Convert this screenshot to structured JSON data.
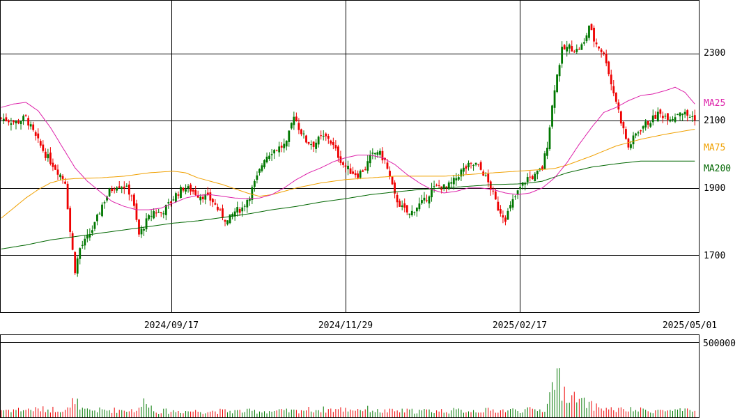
{
  "chart_data": {
    "type": "candlestick",
    "price_axis": {
      "ylim": [
        1530,
        2460
      ],
      "ticks": [
        1700,
        1900,
        2100,
        2300
      ],
      "tick_labels": [
        "1700",
        "1900",
        "2100",
        "2300"
      ]
    },
    "date_axis": {
      "tick_labels": [
        "2024/09/17",
        "2024/11/29",
        "2025/02/17",
        "2025/05/01"
      ]
    },
    "volume_axis": {
      "ylim": [
        0,
        500000
      ],
      "ticks": [
        500000
      ],
      "tick_labels": [
        "500000"
      ]
    },
    "legend": [
      "MA25",
      "MA75",
      "MA200"
    ],
    "colors": {
      "up": "#007700",
      "down": "#ee0000",
      "ma25": "#dd22aa",
      "ma75": "#f0a000",
      "ma200": "#006600",
      "grid": "#000000"
    },
    "price_anchors": [
      [
        0,
        2108
      ],
      [
        6,
        2095
      ],
      [
        10,
        2110
      ],
      [
        14,
        2050
      ],
      [
        18,
        2000
      ],
      [
        22,
        1960
      ],
      [
        26,
        1920
      ],
      [
        28,
        1770
      ],
      [
        30,
        1655
      ],
      [
        32,
        1720
      ],
      [
        35,
        1750
      ],
      [
        38,
        1790
      ],
      [
        41,
        1850
      ],
      [
        44,
        1890
      ],
      [
        47,
        1910
      ],
      [
        50,
        1905
      ],
      [
        53,
        1880
      ],
      [
        56,
        1760
      ],
      [
        59,
        1800
      ],
      [
        62,
        1830
      ],
      [
        65,
        1825
      ],
      [
        68,
        1850
      ],
      [
        71,
        1880
      ],
      [
        74,
        1900
      ],
      [
        77,
        1895
      ],
      [
        80,
        1880
      ],
      [
        83,
        1875
      ],
      [
        86,
        1860
      ],
      [
        89,
        1825
      ],
      [
        92,
        1800
      ],
      [
        95,
        1830
      ],
      [
        98,
        1840
      ],
      [
        101,
        1880
      ],
      [
        104,
        1930
      ],
      [
        107,
        1990
      ],
      [
        110,
        2010
      ],
      [
        113,
        2020
      ],
      [
        116,
        2030
      ],
      [
        119,
        2120
      ],
      [
        121,
        2080
      ],
      [
        124,
        2040
      ],
      [
        127,
        2030
      ],
      [
        130,
        2050
      ],
      [
        133,
        2050
      ],
      [
        136,
        2010
      ],
      [
        139,
        1970
      ],
      [
        142,
        1950
      ],
      [
        145,
        1940
      ],
      [
        148,
        1960
      ],
      [
        150,
        1990
      ],
      [
        153,
        2010
      ],
      [
        156,
        1980
      ],
      [
        158,
        1930
      ],
      [
        160,
        1875
      ],
      [
        163,
        1840
      ],
      [
        166,
        1820
      ],
      [
        169,
        1845
      ],
      [
        172,
        1860
      ],
      [
        175,
        1895
      ],
      [
        178,
        1905
      ],
      [
        181,
        1900
      ],
      [
        184,
        1920
      ],
      [
        187,
        1950
      ],
      [
        190,
        1965
      ],
      [
        193,
        1970
      ],
      [
        196,
        1945
      ],
      [
        199,
        1900
      ],
      [
        202,
        1840
      ],
      [
        205,
        1810
      ],
      [
        208,
        1860
      ],
      [
        211,
        1900
      ],
      [
        214,
        1930
      ],
      [
        217,
        1935
      ],
      [
        220,
        1960
      ],
      [
        222,
        2030
      ],
      [
        225,
        2200
      ],
      [
        228,
        2310
      ],
      [
        231,
        2320
      ],
      [
        234,
        2310
      ],
      [
        237,
        2330
      ],
      [
        239,
        2385
      ],
      [
        241,
        2340
      ],
      [
        244,
        2310
      ],
      [
        246,
        2280
      ],
      [
        248,
        2210
      ],
      [
        250,
        2160
      ],
      [
        252,
        2100
      ],
      [
        255,
        2020
      ],
      [
        258,
        2060
      ],
      [
        261,
        2085
      ],
      [
        264,
        2100
      ],
      [
        267,
        2120
      ],
      [
        270,
        2115
      ],
      [
        273,
        2110
      ],
      [
        276,
        2130
      ],
      [
        279,
        2115
      ],
      [
        282,
        2110
      ]
    ],
    "volume_anchors": [
      [
        0,
        60000
      ],
      [
        28,
        65000
      ],
      [
        30,
        160000
      ],
      [
        32,
        55000
      ],
      [
        56,
        60000
      ],
      [
        59,
        150000
      ],
      [
        62,
        50000
      ],
      [
        120,
        50000
      ],
      [
        122,
        60000
      ],
      [
        150,
        65000
      ],
      [
        153,
        50000
      ],
      [
        200,
        55000
      ],
      [
        221,
        60000
      ],
      [
        225,
        280000
      ],
      [
        226,
        500000
      ],
      [
        227,
        270000
      ],
      [
        228,
        200000
      ],
      [
        231,
        170000
      ],
      [
        234,
        130000
      ],
      [
        237,
        110000
      ],
      [
        240,
        90000
      ],
      [
        245,
        70000
      ],
      [
        250,
        60000
      ],
      [
        282,
        50000
      ]
    ],
    "ma25_anchors": [
      [
        0,
        2140
      ],
      [
        5,
        2150
      ],
      [
        10,
        2155
      ],
      [
        15,
        2130
      ],
      [
        20,
        2080
      ],
      [
        25,
        2020
      ],
      [
        30,
        1960
      ],
      [
        35,
        1920
      ],
      [
        40,
        1890
      ],
      [
        45,
        1860
      ],
      [
        50,
        1845
      ],
      [
        55,
        1835
      ],
      [
        60,
        1835
      ],
      [
        65,
        1840
      ],
      [
        70,
        1855
      ],
      [
        75,
        1870
      ],
      [
        80,
        1878
      ],
      [
        85,
        1880
      ],
      [
        90,
        1875
      ],
      [
        95,
        1870
      ],
      [
        100,
        1868
      ],
      [
        105,
        1870
      ],
      [
        110,
        1880
      ],
      [
        115,
        1900
      ],
      [
        120,
        1925
      ],
      [
        125,
        1945
      ],
      [
        130,
        1960
      ],
      [
        135,
        1978
      ],
      [
        140,
        1990
      ],
      [
        145,
        1998
      ],
      [
        150,
        1998
      ],
      [
        155,
        1990
      ],
      [
        160,
        1970
      ],
      [
        165,
        1940
      ],
      [
        170,
        1915
      ],
      [
        175,
        1895
      ],
      [
        180,
        1885
      ],
      [
        185,
        1890
      ],
      [
        190,
        1900
      ],
      [
        195,
        1900
      ],
      [
        200,
        1895
      ],
      [
        205,
        1885
      ],
      [
        210,
        1880
      ],
      [
        215,
        1885
      ],
      [
        220,
        1900
      ],
      [
        225,
        1930
      ],
      [
        230,
        1975
      ],
      [
        235,
        2030
      ],
      [
        240,
        2080
      ],
      [
        245,
        2125
      ],
      [
        250,
        2140
      ],
      [
        255,
        2160
      ],
      [
        260,
        2175
      ],
      [
        265,
        2180
      ],
      [
        270,
        2190
      ],
      [
        274,
        2200
      ],
      [
        278,
        2185
      ],
      [
        282,
        2150
      ]
    ],
    "ma75_anchors": [
      [
        0,
        1810
      ],
      [
        5,
        1840
      ],
      [
        10,
        1870
      ],
      [
        15,
        1895
      ],
      [
        20,
        1915
      ],
      [
        25,
        1925
      ],
      [
        30,
        1928
      ],
      [
        40,
        1930
      ],
      [
        50,
        1935
      ],
      [
        60,
        1945
      ],
      [
        70,
        1950
      ],
      [
        75,
        1945
      ],
      [
        80,
        1930
      ],
      [
        90,
        1910
      ],
      [
        100,
        1885
      ],
      [
        105,
        1875
      ],
      [
        110,
        1880
      ],
      [
        120,
        1900
      ],
      [
        130,
        1915
      ],
      [
        140,
        1925
      ],
      [
        150,
        1930
      ],
      [
        160,
        1935
      ],
      [
        170,
        1935
      ],
      [
        180,
        1935
      ],
      [
        190,
        1940
      ],
      [
        200,
        1945
      ],
      [
        210,
        1950
      ],
      [
        220,
        1955
      ],
      [
        225,
        1958
      ],
      [
        230,
        1968
      ],
      [
        240,
        1995
      ],
      [
        250,
        2025
      ],
      [
        260,
        2045
      ],
      [
        270,
        2060
      ],
      [
        282,
        2075
      ]
    ],
    "ma200_anchors": [
      [
        0,
        1718
      ],
      [
        10,
        1730
      ],
      [
        20,
        1745
      ],
      [
        30,
        1755
      ],
      [
        40,
        1765
      ],
      [
        50,
        1775
      ],
      [
        60,
        1785
      ],
      [
        70,
        1795
      ],
      [
        80,
        1802
      ],
      [
        90,
        1812
      ],
      [
        100,
        1822
      ],
      [
        110,
        1835
      ],
      [
        120,
        1845
      ],
      [
        130,
        1858
      ],
      [
        140,
        1868
      ],
      [
        150,
        1880
      ],
      [
        160,
        1888
      ],
      [
        170,
        1895
      ],
      [
        180,
        1900
      ],
      [
        190,
        1905
      ],
      [
        200,
        1910
      ],
      [
        210,
        1912
      ],
      [
        215,
        1915
      ],
      [
        220,
        1920
      ],
      [
        230,
        1945
      ],
      [
        240,
        1962
      ],
      [
        250,
        1972
      ],
      [
        260,
        1980
      ],
      [
        270,
        1980
      ],
      [
        282,
        1980
      ]
    ]
  }
}
